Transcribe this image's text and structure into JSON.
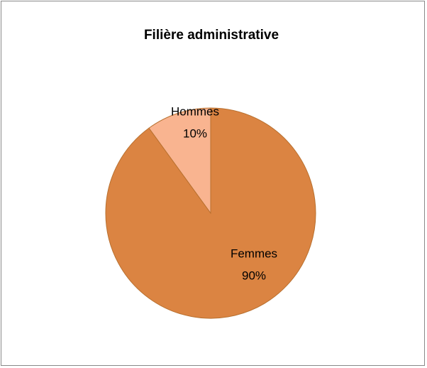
{
  "chart_data": {
    "type": "pie",
    "title": "Filière administrative",
    "categories": [
      "Femmes",
      "Hommes"
    ],
    "values": [
      90,
      10
    ],
    "value_labels": [
      "90%",
      "10%"
    ],
    "colors": [
      "#db8442",
      "#f9b490"
    ]
  }
}
